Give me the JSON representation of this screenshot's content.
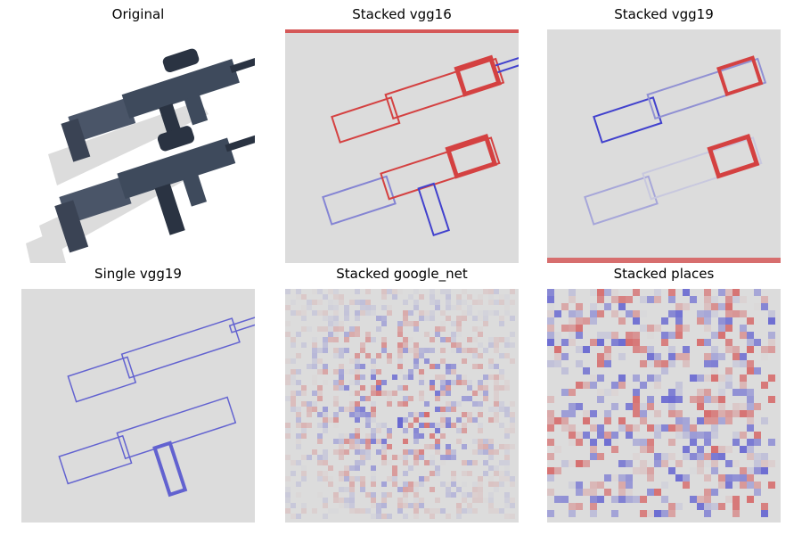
{
  "figure": {
    "panels": [
      {
        "title": "Original",
        "kind": "original"
      },
      {
        "title": "Stacked vgg16",
        "kind": "heatmap"
      },
      {
        "title": "Stacked vgg19",
        "kind": "heatmap"
      },
      {
        "title": "Single vgg19",
        "kind": "heatmap"
      },
      {
        "title": "Stacked google_net",
        "kind": "heatmap-grid"
      },
      {
        "title": "Stacked places",
        "kind": "heatmap-grid"
      }
    ],
    "colors": {
      "background_map": "#dcdcdc",
      "positive": "#d10000",
      "negative": "#0000c8",
      "rifle_body": "#3e4a5c",
      "rifle_dark": "#2a3342"
    },
    "image_content": "two-assault-rifles-icon"
  }
}
